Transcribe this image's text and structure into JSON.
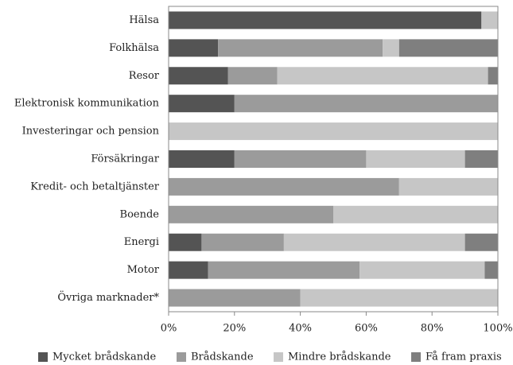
{
  "chart_data": {
    "type": "stacked-barh",
    "categories": [
      "Hälsa",
      "Folkhälsa",
      "Resor",
      "Elektronisk kommunikation",
      "Investeringar och pension",
      "Försäkringar",
      "Kredit- och betaltjänster",
      "Boende",
      "Energi",
      "Motor",
      "Övriga marknader*"
    ],
    "series": [
      {
        "name": "Mycket brådskande",
        "color": "#545454",
        "values": [
          95,
          15,
          18,
          20,
          0,
          20,
          0,
          0,
          10,
          12,
          0
        ]
      },
      {
        "name": "Brådskande",
        "color": "#9b9b9b",
        "values": [
          0,
          50,
          15,
          80,
          0,
          40,
          70,
          50,
          25,
          46,
          40
        ]
      },
      {
        "name": "Mindre brådskande",
        "color": "#c6c6c6",
        "values": [
          5,
          5,
          64,
          0,
          100,
          30,
          30,
          50,
          55,
          38,
          60
        ]
      },
      {
        "name": "Få fram praxis",
        "color": "#7f7f7f",
        "values": [
          0,
          30,
          3,
          0,
          0,
          10,
          0,
          0,
          10,
          4,
          0
        ]
      }
    ],
    "xlim": [
      0,
      100
    ],
    "xticks": [
      {
        "value": 0,
        "label": "0%"
      },
      {
        "value": 20,
        "label": "20%"
      },
      {
        "value": 40,
        "label": "40%"
      },
      {
        "value": 60,
        "label": "60%"
      },
      {
        "value": 80,
        "label": "80%"
      },
      {
        "value": 100,
        "label": "100%"
      }
    ],
    "legend": "bottom"
  }
}
